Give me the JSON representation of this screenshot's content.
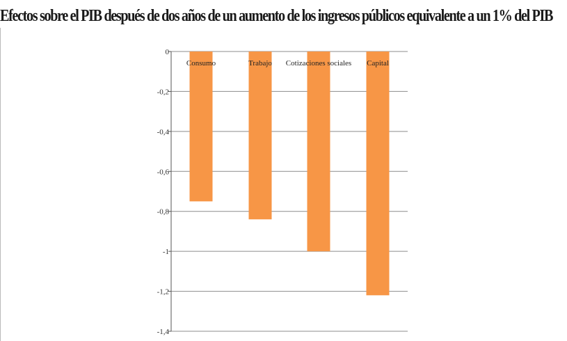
{
  "chart_data": {
    "type": "bar",
    "title": "Efectos sobre el PIB después de dos años de un aumento de los ingresos públicos equivalente a un 1% del PIB",
    "categories": [
      "Consumo",
      "Trabajo",
      "Cotizaciones sociales",
      "Capital"
    ],
    "values": [
      -0.75,
      -0.84,
      -1.0,
      -1.22
    ],
    "ylim": [
      -1.4,
      0
    ],
    "yticks": [
      0,
      -0.2,
      -0.4,
      -0.6,
      -0.8,
      -1,
      -1.2,
      -1.4
    ],
    "ytick_labels": [
      "0",
      "-0,2",
      "-0,4",
      "-0,6",
      "-0,8",
      "-1",
      "-1,2",
      "-1,4"
    ],
    "xlabel": "",
    "ylabel": "",
    "grid": true,
    "legend": "none",
    "bar_color": "#f79646",
    "grid_color": "#8c8c8c"
  }
}
